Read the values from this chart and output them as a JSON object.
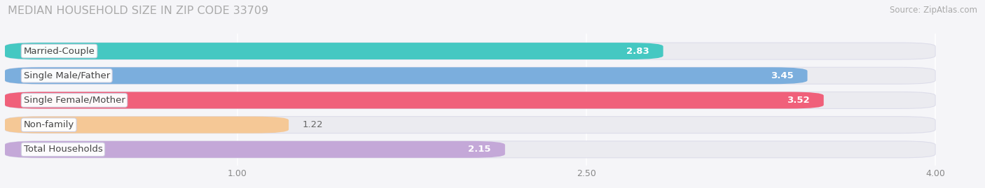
{
  "title": "MEDIAN HOUSEHOLD SIZE IN ZIP CODE 33709",
  "source": "Source: ZipAtlas.com",
  "categories": [
    "Married-Couple",
    "Single Male/Father",
    "Single Female/Mother",
    "Non-family",
    "Total Households"
  ],
  "values": [
    2.83,
    3.45,
    3.52,
    1.22,
    2.15
  ],
  "bar_colors": [
    "#45c8c2",
    "#7baedd",
    "#f0607a",
    "#f5c896",
    "#c4a8d8"
  ],
  "xlim": [
    0,
    4.15
  ],
  "xmin": 0,
  "xmax": 4.0,
  "xticks": [
    1.0,
    2.5,
    4.0
  ],
  "background_color": "#f5f5f8",
  "bar_bg_color": "#ebebf0",
  "bar_row_bg": "#f5f5f8",
  "title_fontsize": 11.5,
  "source_fontsize": 8.5,
  "label_fontsize": 9.5,
  "value_fontsize": 9.5,
  "tick_fontsize": 9
}
